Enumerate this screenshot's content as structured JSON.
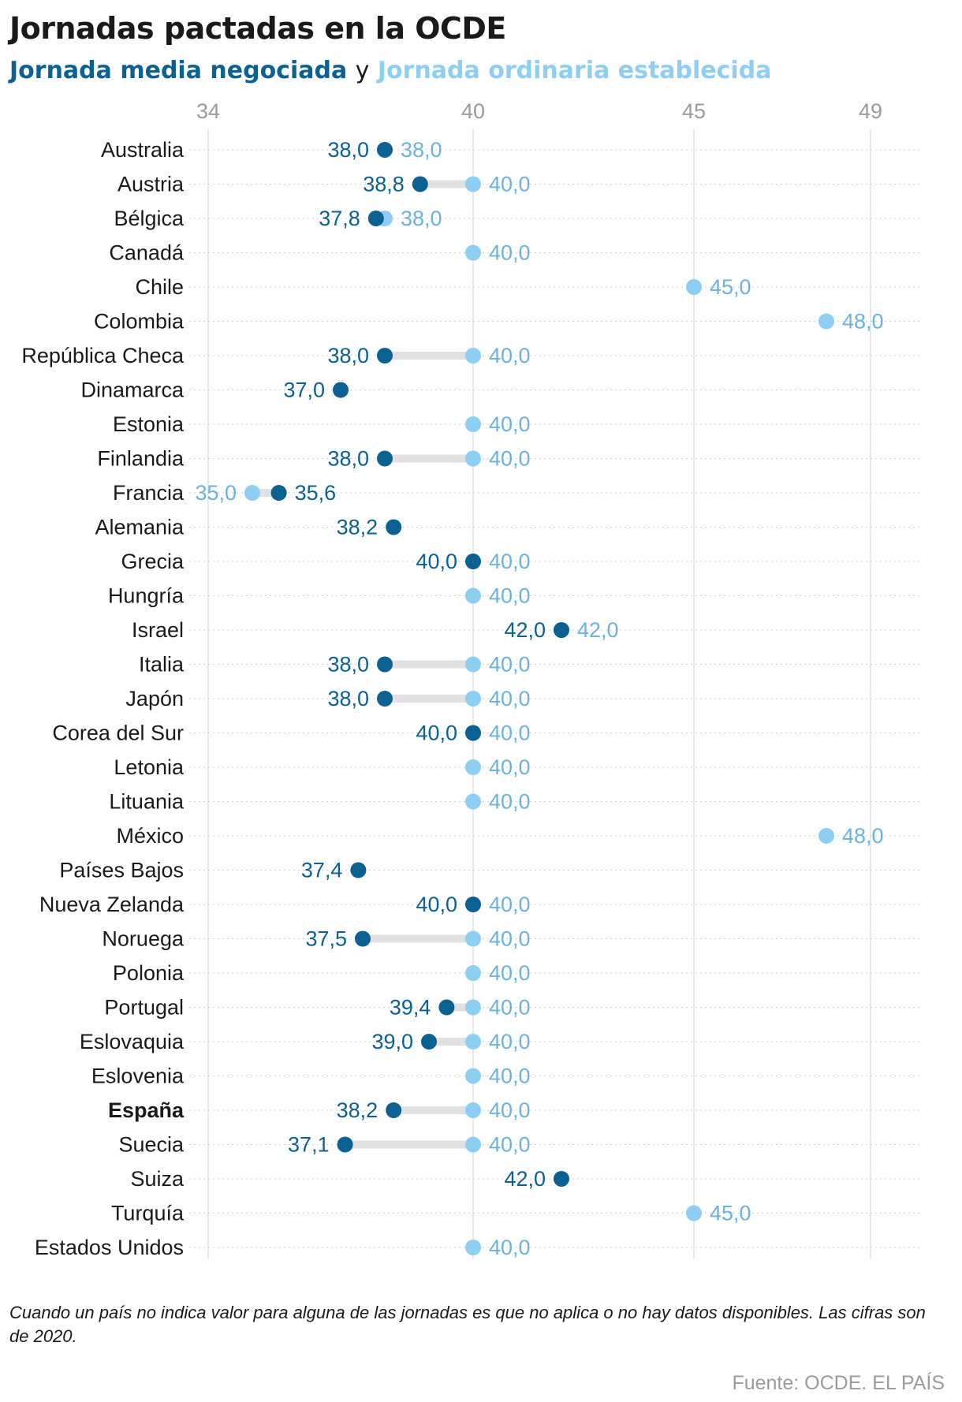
{
  "title": "Jornadas pactadas en la OCDE",
  "subtitle": {
    "series1": "Jornada media negociada",
    "conjunction": "y",
    "series2": "Jornada ordinaria establecida"
  },
  "note": "Cuando un país no indica valor para alguna de las jornadas es que no aplica o no hay datos disponibles. Las cifras son de 2020.",
  "source": "Fuente: OCDE. EL PAÍS",
  "colors": {
    "negotiated": "#0b6192",
    "established": "#8fcef3",
    "established_label": "#6bb2de",
    "connector": "#e1e1e1",
    "grid": "#d9d9d9",
    "tick": "#9b9b9b"
  },
  "chart_data": {
    "type": "dot-plot",
    "title": "Jornadas pactadas en la OCDE",
    "x_ticks": [
      34,
      40,
      45,
      49
    ],
    "xlim": [
      34,
      49
    ],
    "grid": true,
    "decimal_separator": ",",
    "highlight": "España",
    "series": [
      {
        "name": "Jornada media negociada",
        "key": "negotiated"
      },
      {
        "name": "Jornada ordinaria establecida",
        "key": "established"
      }
    ],
    "rows": [
      {
        "country": "Australia",
        "negotiated": 38.0,
        "established": 38.0
      },
      {
        "country": "Austria",
        "negotiated": 38.8,
        "established": 40.0
      },
      {
        "country": "Bélgica",
        "negotiated": 37.8,
        "established": 38.0
      },
      {
        "country": "Canadá",
        "negotiated": null,
        "established": 40.0
      },
      {
        "country": "Chile",
        "negotiated": null,
        "established": 45.0
      },
      {
        "country": "Colombia",
        "negotiated": null,
        "established": 48.0
      },
      {
        "country": "República Checa",
        "negotiated": 38.0,
        "established": 40.0
      },
      {
        "country": "Dinamarca",
        "negotiated": 37.0,
        "established": null
      },
      {
        "country": "Estonia",
        "negotiated": null,
        "established": 40.0
      },
      {
        "country": "Finlandia",
        "negotiated": 38.0,
        "established": 40.0
      },
      {
        "country": "Francia",
        "negotiated": 35.6,
        "established": 35.0
      },
      {
        "country": "Alemania",
        "negotiated": 38.2,
        "established": null
      },
      {
        "country": "Grecia",
        "negotiated": 40.0,
        "established": 40.0
      },
      {
        "country": "Hungría",
        "negotiated": null,
        "established": 40.0
      },
      {
        "country": "Israel",
        "negotiated": 42.0,
        "established": 42.0
      },
      {
        "country": "Italia",
        "negotiated": 38.0,
        "established": 40.0
      },
      {
        "country": "Japón",
        "negotiated": 38.0,
        "established": 40.0
      },
      {
        "country": "Corea del Sur",
        "negotiated": 40.0,
        "established": 40.0
      },
      {
        "country": "Letonia",
        "negotiated": null,
        "established": 40.0
      },
      {
        "country": "Lituania",
        "negotiated": null,
        "established": 40.0
      },
      {
        "country": "México",
        "negotiated": null,
        "established": 48.0
      },
      {
        "country": "Países Bajos",
        "negotiated": 37.4,
        "established": null
      },
      {
        "country": "Nueva Zelanda",
        "negotiated": 40.0,
        "established": 40.0
      },
      {
        "country": "Noruega",
        "negotiated": 37.5,
        "established": 40.0
      },
      {
        "country": "Polonia",
        "negotiated": null,
        "established": 40.0
      },
      {
        "country": "Portugal",
        "negotiated": 39.4,
        "established": 40.0
      },
      {
        "country": "Eslovaquia",
        "negotiated": 39.0,
        "established": 40.0
      },
      {
        "country": "Eslovenia",
        "negotiated": null,
        "established": 40.0
      },
      {
        "country": "España",
        "negotiated": 38.2,
        "established": 40.0
      },
      {
        "country": "Suecia",
        "negotiated": 37.1,
        "established": 40.0
      },
      {
        "country": "Suiza",
        "negotiated": 42.0,
        "established": null
      },
      {
        "country": "Turquía",
        "negotiated": null,
        "established": 45.0
      },
      {
        "country": "Estados Unidos",
        "negotiated": null,
        "established": 40.0
      }
    ]
  }
}
